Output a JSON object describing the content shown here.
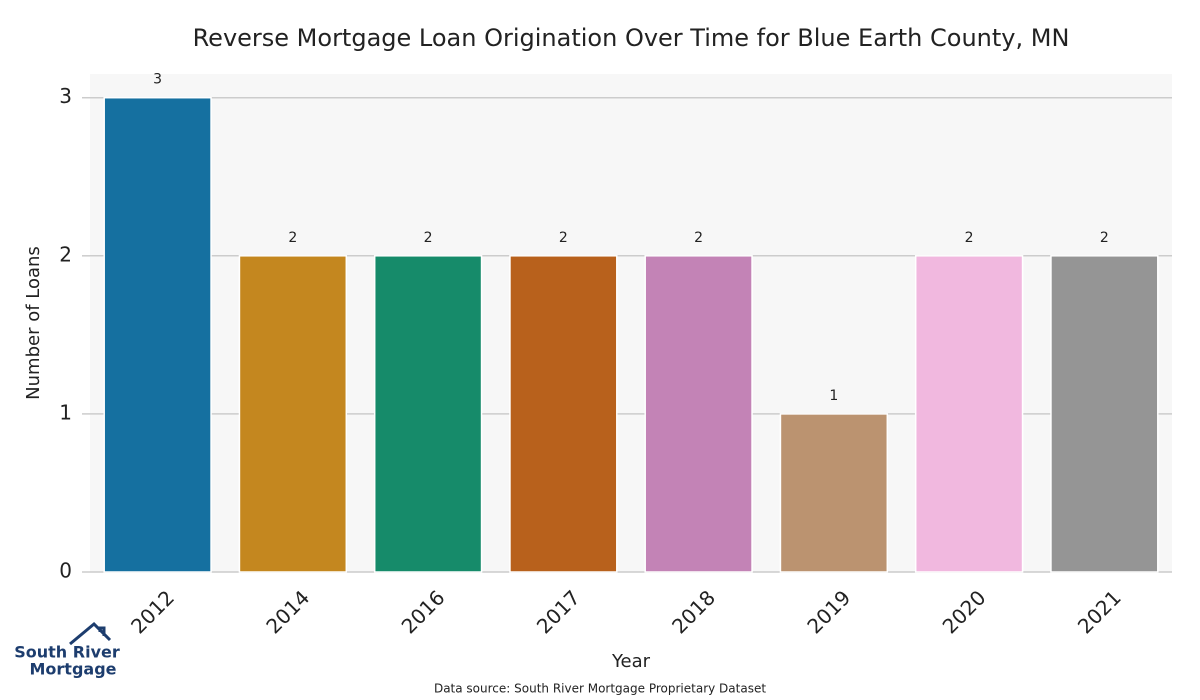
{
  "chart_data": {
    "type": "bar",
    "title": "Reverse Mortgage Loan Origination Over Time for Blue Earth County, MN",
    "x_label": "Year",
    "y_label": "Number of Loans",
    "categories": [
      "2012",
      "2014",
      "2016",
      "2017",
      "2018",
      "2019",
      "2020",
      "2021"
    ],
    "values": [
      3,
      2,
      2,
      2,
      2,
      1,
      2,
      2
    ],
    "colors": [
      "#1570a0",
      "#c4871f",
      "#168b6a",
      "#b8611c",
      "#c383b6",
      "#bb9370",
      "#f1b8df",
      "#959595"
    ],
    "ylim": [
      0,
      3.15
    ],
    "yticks": [
      0,
      1,
      2,
      3
    ],
    "grid": true,
    "source": "Data source: South River Mortgage Proprietary Dataset"
  },
  "logo": [
    "South River",
    "Mortgage"
  ]
}
